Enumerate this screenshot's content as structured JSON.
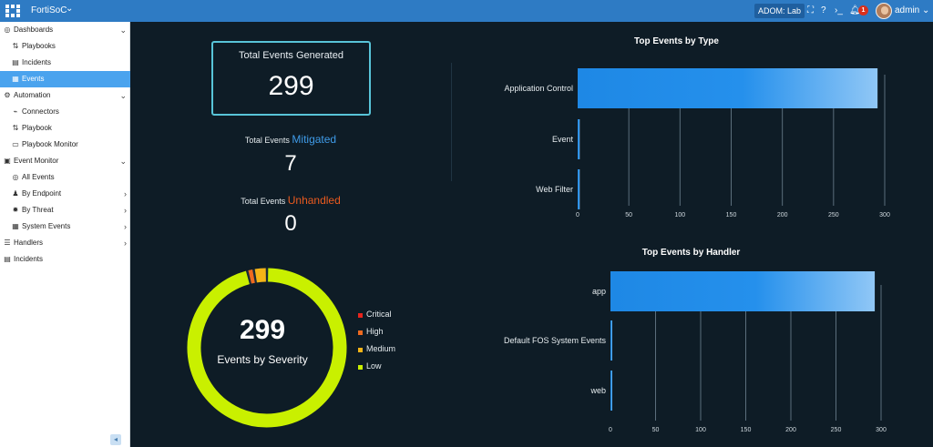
{
  "topbar": {
    "app_name": "FortiSoC",
    "adom_label": "ADOM: Lab",
    "notification_count": "1",
    "username": "admin"
  },
  "sidebar": {
    "items": [
      {
        "label": "Dashboards",
        "icon": "dashboard-icon",
        "glyph": "◎",
        "level": 0,
        "arrow": "⌄",
        "active": false
      },
      {
        "label": "Playbooks",
        "icon": "playbooks-icon",
        "glyph": "⇅",
        "level": 1,
        "arrow": "",
        "active": false
      },
      {
        "label": "Incidents",
        "icon": "incidents-icon",
        "glyph": "▤",
        "level": 1,
        "arrow": "",
        "active": false
      },
      {
        "label": "Events",
        "icon": "events-icon",
        "glyph": "▦",
        "level": 1,
        "arrow": "",
        "active": true
      },
      {
        "label": "Automation",
        "icon": "automation-icon",
        "glyph": "⚙",
        "level": 0,
        "arrow": "⌄",
        "active": false
      },
      {
        "label": "Connectors",
        "icon": "connectors-icon",
        "glyph": "⌁",
        "level": 1,
        "arrow": "",
        "active": false
      },
      {
        "label": "Playbook",
        "icon": "playbook-icon",
        "glyph": "⇅",
        "level": 1,
        "arrow": "",
        "active": false
      },
      {
        "label": "Playbook Monitor",
        "icon": "monitor-icon",
        "glyph": "▭",
        "level": 1,
        "arrow": "",
        "active": false
      },
      {
        "label": "Event Monitor",
        "icon": "event-monitor-icon",
        "glyph": "▣",
        "level": 0,
        "arrow": "⌄",
        "active": false
      },
      {
        "label": "All Events",
        "icon": "all-events-icon",
        "glyph": "◎",
        "level": 1,
        "arrow": "",
        "active": false
      },
      {
        "label": "By Endpoint",
        "icon": "endpoint-icon",
        "glyph": "♟",
        "level": 1,
        "arrow": "›",
        "active": false
      },
      {
        "label": "By Threat",
        "icon": "threat-icon",
        "glyph": "✹",
        "level": 1,
        "arrow": "›",
        "active": false
      },
      {
        "label": "System Events",
        "icon": "system-events-icon",
        "glyph": "▦",
        "level": 1,
        "arrow": "›",
        "active": false
      },
      {
        "label": "Handlers",
        "icon": "handlers-icon",
        "glyph": "☰",
        "level": 0,
        "arrow": "›",
        "active": false
      },
      {
        "label": "Incidents",
        "icon": "incidents-icon",
        "glyph": "▤",
        "level": 0,
        "arrow": "",
        "active": false
      }
    ]
  },
  "stats": {
    "generated_label": "Total Events Generated",
    "generated_value": "299",
    "mitigated_prefix": "Total Events ",
    "mitigated_highlight": "Mitigated",
    "mitigated_value": "7",
    "unhandled_prefix": "Total Events ",
    "unhandled_highlight": "Unhandled",
    "unhandled_value": "0"
  },
  "severity": {
    "total": "299",
    "label": "Events by Severity",
    "legend": [
      {
        "name": "Critical",
        "color": "#e8241c"
      },
      {
        "name": "High",
        "color": "#ef6a1f"
      },
      {
        "name": "Medium",
        "color": "#f5b417"
      },
      {
        "name": "Low",
        "color": "#c9f000"
      }
    ]
  },
  "chart_data": [
    {
      "type": "bar",
      "orientation": "horizontal",
      "title": "Top Events by Type",
      "categories": [
        "Application Control",
        "Event",
        "Web Filter"
      ],
      "values": [
        293,
        2,
        2
      ],
      "xlim": [
        0,
        300
      ],
      "xticks": [
        0,
        50,
        100,
        150,
        200,
        250,
        300
      ],
      "grid": true
    },
    {
      "type": "bar",
      "orientation": "horizontal",
      "title": "Top Events by Handler",
      "categories": [
        "app",
        "Default FOS System Events",
        "web"
      ],
      "values": [
        293,
        2,
        2
      ],
      "xlim": [
        0,
        300
      ],
      "xticks": [
        0,
        50,
        100,
        150,
        200,
        250,
        300
      ],
      "grid": true
    },
    {
      "type": "pie",
      "title": "Events by Severity",
      "categories": [
        "Critical",
        "High",
        "Medium",
        "Low"
      ],
      "values": [
        0,
        4,
        8,
        287
      ],
      "total": 299
    }
  ]
}
